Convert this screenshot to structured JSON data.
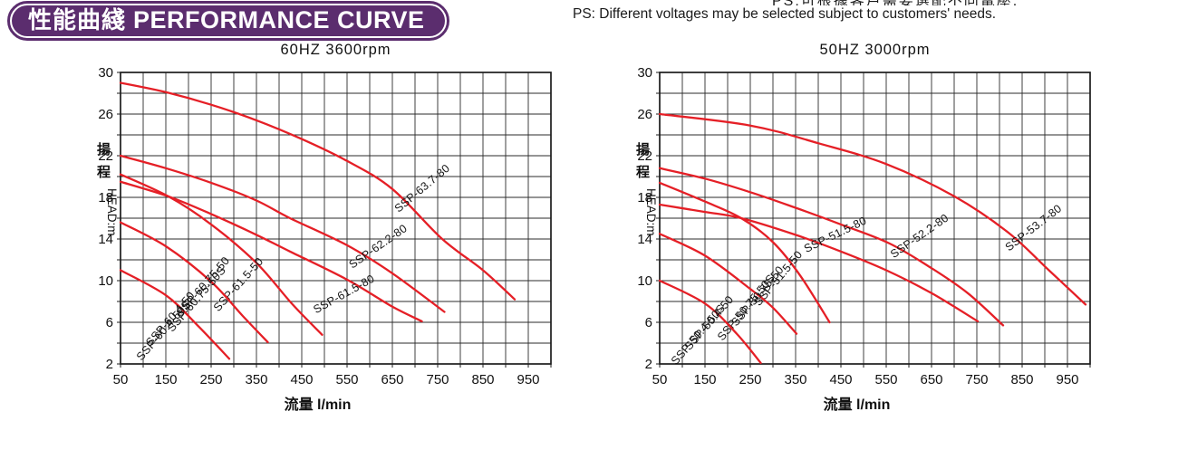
{
  "header": {
    "badge": {
      "cjk": "性能曲綫",
      "en": "PERFORMANCE CURVE",
      "bg_color": "#5b2d6e"
    },
    "note_clipped_cjk": "PS:可根據客戶需要選配不同電壓.",
    "note_en": "PS: Different voltages may be selected subject to customers' needs."
  },
  "colors": {
    "curve": "#e51f26",
    "grid": "#2b2b2b",
    "text": "#111111",
    "badge_purple": "#5b2d6e"
  },
  "chart_data": [
    {
      "id": "60hz",
      "type": "line",
      "title": "60HZ  3600rpm",
      "xlabel_cjk": "流量",
      "xlabel_unit": "l/min",
      "ylabel_cjk": "揚程",
      "ylabel_latin": "HEAD:m",
      "xlim": [
        50,
        1000
      ],
      "ylim": [
        2,
        30
      ],
      "x_grid_step": 50,
      "y_grid_step": 2,
      "x_ticks": [
        50,
        150,
        250,
        350,
        450,
        550,
        650,
        750,
        850,
        950
      ],
      "y_ticks": [
        2,
        6,
        10,
        14,
        18,
        22,
        26,
        30
      ],
      "grid": true,
      "legend": "labels-on-curves",
      "series": [
        {
          "name": "SSP-63.7-80",
          "points": [
            [
              50,
              29
            ],
            [
              150,
              28.1
            ],
            [
              250,
              26.9
            ],
            [
              350,
              25.4
            ],
            [
              450,
              23.6
            ],
            [
              550,
              21.5
            ],
            [
              650,
              18.8
            ],
            [
              760,
              14.0
            ],
            [
              850,
              11.0
            ],
            [
              920,
              8.2
            ]
          ],
          "label": {
            "x": 721,
            "y": 18.6,
            "angle": -40
          }
        },
        {
          "name": "SSP-62.2-80",
          "points": [
            [
              50,
              22
            ],
            [
              150,
              20.8
            ],
            [
              250,
              19.4
            ],
            [
              350,
              17.7
            ],
            [
              424,
              16.0
            ],
            [
              550,
              13.4
            ],
            [
              650,
              10.7
            ],
            [
              765,
              7.0
            ]
          ],
          "label": {
            "x": 623,
            "y": 13.0,
            "angle": -35
          }
        },
        {
          "name": "SSP-61.5-80",
          "points": [
            [
              50,
              19.5
            ],
            [
              155,
              18.1
            ],
            [
              250,
              16.4
            ],
            [
              350,
              14.4
            ],
            [
              424,
              12.8
            ],
            [
              550,
              10.1
            ],
            [
              650,
              7.5
            ],
            [
              715,
              6.1
            ]
          ],
          "label": {
            "x": 547,
            "y": 8.4,
            "angle": -29
          }
        },
        {
          "name": "SSP-61.5-50",
          "points": [
            [
              50,
              20.2
            ],
            [
              155,
              18.1
            ],
            [
              250,
              15.4
            ],
            [
              350,
              11.7
            ],
            [
              430,
              7.7
            ],
            [
              495,
              4.8
            ]
          ],
          "label": {
            "x": 316,
            "y": 9.4,
            "angle": -48
          }
        },
        {
          "name": "SSP-60.75-50",
          "points": [
            [
              50,
              15.6
            ],
            [
              150,
              13.3
            ],
            [
              250,
              9.9
            ],
            [
              320,
              6.6
            ],
            [
              375,
              4.1
            ]
          ],
          "label": {
            "x": 238,
            "y": 9.2,
            "angle": -49
          }
        },
        {
          "name": "SSP-60.75-50S",
          "points": [],
          "label": {
            "x": 224,
            "y": 8.0,
            "angle": -49
          }
        },
        {
          "name": "SSP-60.4-50",
          "points": [
            [
              50,
              11.0
            ],
            [
              150,
              8.6
            ],
            [
              220,
              5.7
            ],
            [
              290,
              2.5
            ]
          ],
          "label": {
            "x": 166,
            "y": 6.1,
            "angle": -49
          }
        },
        {
          "name": "SSP-60.4-50S",
          "points": [],
          "label": {
            "x": 151,
            "y": 5.0,
            "angle": -49
          }
        }
      ]
    },
    {
      "id": "50hz",
      "type": "line",
      "title": "50HZ  3000rpm",
      "xlabel_cjk": "流量",
      "xlabel_unit": "l/min",
      "ylabel_cjk": "揚程",
      "ylabel_latin": "HEAD:m",
      "xlim": [
        50,
        1000
      ],
      "ylim": [
        2,
        30
      ],
      "x_grid_step": 50,
      "y_grid_step": 2,
      "x_ticks": [
        50,
        150,
        250,
        350,
        450,
        550,
        650,
        750,
        850,
        950
      ],
      "y_ticks": [
        2,
        6,
        10,
        14,
        18,
        22,
        26,
        30
      ],
      "grid": true,
      "legend": "labels-on-curves",
      "series": [
        {
          "name": "SSP-53.7-80",
          "points": [
            [
              50,
              26
            ],
            [
              250,
              24.9
            ],
            [
              400,
              23.2
            ],
            [
              550,
              21.2
            ],
            [
              700,
              18.1
            ],
            [
              820,
              14.6
            ],
            [
              909,
              11.0
            ],
            [
              990,
              7.7
            ]
          ],
          "label": {
            "x": 880,
            "y": 14.8,
            "angle": -38
          }
        },
        {
          "name": "SSP-52.2-80",
          "points": [
            [
              50,
              20.8
            ],
            [
              150,
              19.8
            ],
            [
              250,
              18.5
            ],
            [
              350,
              17.0
            ],
            [
              450,
              15.4
            ],
            [
              556,
              13.6
            ],
            [
              650,
              11.2
            ],
            [
              730,
              8.8
            ],
            [
              808,
              5.7
            ]
          ],
          "label": {
            "x": 628,
            "y": 14.0,
            "angle": -35
          }
        },
        {
          "name": "SSP-51.5-80",
          "points": [
            [
              50,
              17.3
            ],
            [
              150,
              16.6
            ],
            [
              230,
              16.0
            ],
            [
              350,
              14.4
            ],
            [
              450,
              12.8
            ],
            [
              550,
              11.0
            ],
            [
              650,
              8.8
            ],
            [
              752,
              6.1
            ]
          ],
          "label": {
            "x": 441,
            "y": 14.1,
            "angle": -26
          }
        },
        {
          "name": "SSP-51.5-50",
          "points": [
            [
              50,
              19.4
            ],
            [
              150,
              17.6
            ],
            [
              230,
              16.0
            ],
            [
              300,
              13.7
            ],
            [
              360,
              10.5
            ],
            [
              425,
              6.0
            ]
          ],
          "label": {
            "x": 318,
            "y": 10.0,
            "angle": -50
          }
        },
        {
          "name": "SSP-50.75-50",
          "points": [
            [
              50,
              14.5
            ],
            [
              150,
              12.4
            ],
            [
              250,
              9.2
            ],
            [
              300,
              7.4
            ],
            [
              352,
              4.9
            ]
          ],
          "label": {
            "x": 272,
            "y": 8.3,
            "angle": -50
          }
        },
        {
          "name": "SSP-50.75-50S",
          "points": [],
          "label": {
            "x": 247,
            "y": 7.2,
            "angle": -50
          }
        },
        {
          "name": "SSP-50.4-50",
          "points": [
            [
              50,
              10.0
            ],
            [
              150,
              7.8
            ],
            [
              220,
              4.9
            ],
            [
              273,
              2.1
            ]
          ],
          "label": {
            "x": 165,
            "y": 5.7,
            "angle": -49
          }
        },
        {
          "name": "SSP-50.4-50S",
          "points": [],
          "label": {
            "x": 141,
            "y": 4.6,
            "angle": -49
          }
        }
      ]
    }
  ]
}
